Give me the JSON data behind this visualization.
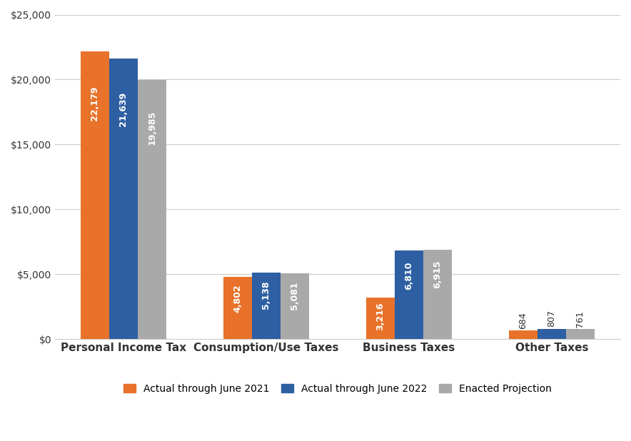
{
  "categories": [
    "Personal Income Tax",
    "Consumption/Use Taxes",
    "Business Taxes",
    "Other Taxes"
  ],
  "series": [
    {
      "label": "Actual through June 2021",
      "color": "#E8722A",
      "values": [
        22179,
        4802,
        3216,
        684
      ]
    },
    {
      "label": "Actual through June 2022",
      "color": "#2E5FA3",
      "values": [
        21639,
        5138,
        6810,
        807
      ]
    },
    {
      "label": "Enacted Projection",
      "color": "#A9A9A9",
      "values": [
        19985,
        5081,
        6915,
        761
      ]
    }
  ],
  "ylim": [
    0,
    25000
  ],
  "yticks": [
    0,
    5000,
    10000,
    15000,
    20000,
    25000
  ],
  "ytick_labels": [
    "$0",
    "$5,000",
    "$10,000",
    "$15,000",
    "$20,000",
    "$25,000"
  ],
  "bar_width": 0.2,
  "background_color": "#FFFFFF",
  "grid_color": "#CCCCCC",
  "label_color_white": "#FFFFFF",
  "label_color_dark": "#333333",
  "label_fontsize": 9,
  "axis_label_fontsize": 11,
  "tick_fontsize": 10,
  "legend_fontsize": 10,
  "inside_threshold": 1500
}
